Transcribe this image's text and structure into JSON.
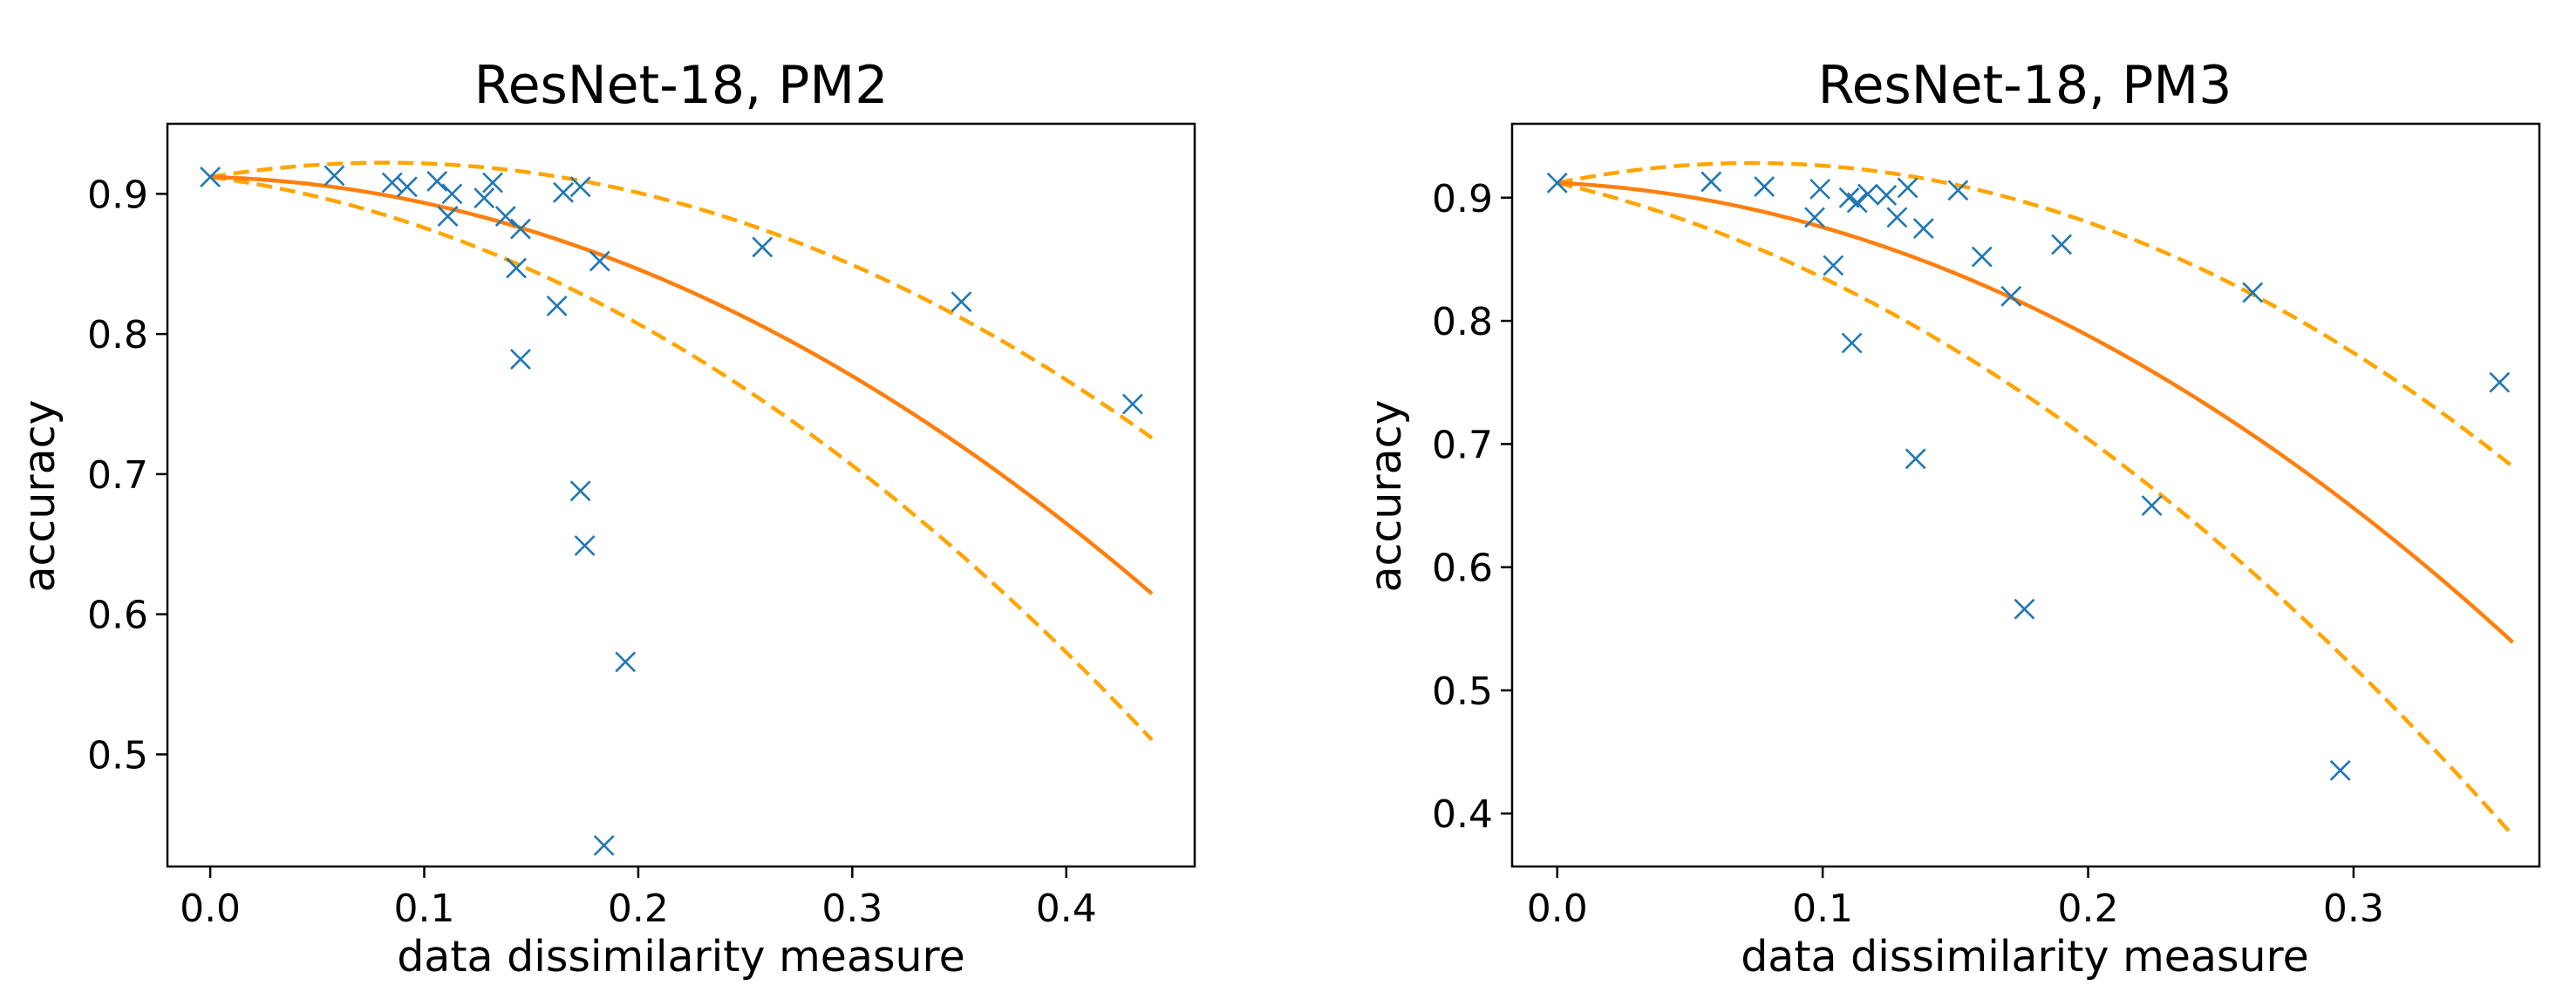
{
  "chart_data": [
    {
      "type": "scatter",
      "title": "ResNet-18, PM2",
      "xlabel": "data dissimilarity measure",
      "ylabel": "accuracy",
      "xlim": [
        -0.02,
        0.46
      ],
      "ylim": [
        0.42,
        0.95
      ],
      "xticks": [
        0.0,
        0.1,
        0.2,
        0.3,
        0.4
      ],
      "xtick_labels": [
        "0.0",
        "0.1",
        "0.2",
        "0.3",
        "0.4"
      ],
      "yticks": [
        0.5,
        0.6,
        0.7,
        0.8,
        0.9
      ],
      "ytick_labels": [
        "0.5",
        "0.6",
        "0.7",
        "0.8",
        "0.9"
      ],
      "points": [
        {
          "x": 0.0,
          "y": 0.912
        },
        {
          "x": 0.058,
          "y": 0.913
        },
        {
          "x": 0.085,
          "y": 0.908
        },
        {
          "x": 0.092,
          "y": 0.905
        },
        {
          "x": 0.106,
          "y": 0.909
        },
        {
          "x": 0.113,
          "y": 0.9
        },
        {
          "x": 0.111,
          "y": 0.884
        },
        {
          "x": 0.128,
          "y": 0.897
        },
        {
          "x": 0.132,
          "y": 0.908
        },
        {
          "x": 0.138,
          "y": 0.884
        },
        {
          "x": 0.145,
          "y": 0.875
        },
        {
          "x": 0.143,
          "y": 0.847
        },
        {
          "x": 0.145,
          "y": 0.782
        },
        {
          "x": 0.165,
          "y": 0.901
        },
        {
          "x": 0.173,
          "y": 0.905
        },
        {
          "x": 0.182,
          "y": 0.852
        },
        {
          "x": 0.162,
          "y": 0.82
        },
        {
          "x": 0.173,
          "y": 0.688
        },
        {
          "x": 0.175,
          "y": 0.649
        },
        {
          "x": 0.194,
          "y": 0.566
        },
        {
          "x": 0.184,
          "y": 0.435
        },
        {
          "x": 0.258,
          "y": 0.862
        },
        {
          "x": 0.351,
          "y": 0.823
        },
        {
          "x": 0.431,
          "y": 0.75
        }
      ],
      "fit_curve": {
        "y0": 0.912,
        "a": -0.04,
        "b": -1.445,
        "x_end": 0.44
      },
      "upper_bound": {
        "y0": 0.912,
        "a": 0.25,
        "b": -1.53,
        "x_end": 0.44
      },
      "lower_bound": {
        "y0": 0.912,
        "a": -0.2,
        "b": -1.62,
        "x_end": 0.44
      }
    },
    {
      "type": "scatter",
      "title": "ResNet-18, PM3",
      "xlabel": "data dissimilarity measure",
      "ylabel": "accuracy",
      "xlim": [
        -0.017,
        0.37
      ],
      "ylim": [
        0.357,
        0.96
      ],
      "xticks": [
        0.0,
        0.1,
        0.2,
        0.3
      ],
      "xtick_labels": [
        "0.0",
        "0.1",
        "0.2",
        "0.3"
      ],
      "yticks": [
        0.4,
        0.5,
        0.6,
        0.7,
        0.8,
        0.9
      ],
      "ytick_labels": [
        "0.4",
        "0.5",
        "0.6",
        "0.7",
        "0.8",
        "0.9"
      ],
      "points": [
        {
          "x": 0.0,
          "y": 0.912
        },
        {
          "x": 0.058,
          "y": 0.913
        },
        {
          "x": 0.078,
          "y": 0.909
        },
        {
          "x": 0.097,
          "y": 0.884
        },
        {
          "x": 0.099,
          "y": 0.907
        },
        {
          "x": 0.104,
          "y": 0.845
        },
        {
          "x": 0.11,
          "y": 0.9
        },
        {
          "x": 0.113,
          "y": 0.896
        },
        {
          "x": 0.117,
          "y": 0.903
        },
        {
          "x": 0.111,
          "y": 0.782
        },
        {
          "x": 0.124,
          "y": 0.902
        },
        {
          "x": 0.128,
          "y": 0.884
        },
        {
          "x": 0.132,
          "y": 0.908
        },
        {
          "x": 0.138,
          "y": 0.875
        },
        {
          "x": 0.135,
          "y": 0.688
        },
        {
          "x": 0.151,
          "y": 0.906
        },
        {
          "x": 0.16,
          "y": 0.852
        },
        {
          "x": 0.171,
          "y": 0.82
        },
        {
          "x": 0.176,
          "y": 0.566
        },
        {
          "x": 0.19,
          "y": 0.862
        },
        {
          "x": 0.224,
          "y": 0.65
        },
        {
          "x": 0.262,
          "y": 0.823
        },
        {
          "x": 0.295,
          "y": 0.435
        },
        {
          "x": 0.355,
          "y": 0.75
        }
      ],
      "fit_curve": {
        "y0": 0.912,
        "a": -0.1,
        "b": -2.6,
        "x_end": 0.36
      },
      "upper_bound": {
        "y0": 0.912,
        "a": 0.44,
        "b": -3.0,
        "x_end": 0.36
      },
      "lower_bound": {
        "y0": 0.912,
        "a": -0.5,
        "b": -2.7,
        "x_end": 0.36
      }
    }
  ],
  "colors": {
    "markers": "#1f77b4",
    "fit_curve": "#ff7f0e",
    "bounds": "#ffa500"
  }
}
